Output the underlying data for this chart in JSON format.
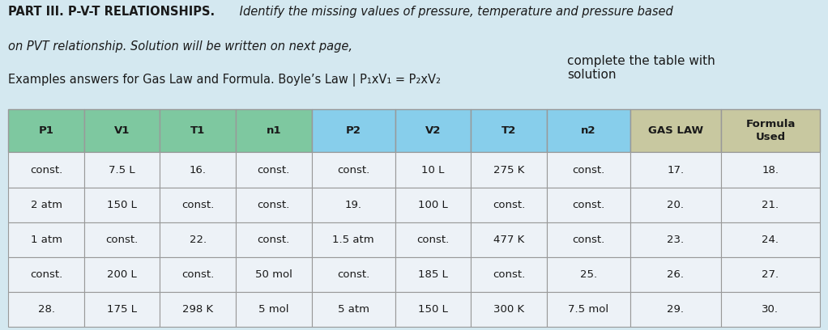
{
  "bg_color": "#D4E8F0",
  "title_bold": "PART III. P-V-T RELATIONSHIPS.",
  "title_italic_rest": " Identify the missing values of pressure, temperature and pressure based",
  "line2": "on PVT relationship. Solution will be written on next page,",
  "line3_left": "Examples answers for Gas Law and Formula. Boyle’s Law | P₁xV₁ = P₂xV₂",
  "line3_right": "complete the table with\nsolution",
  "header_row": [
    "P1",
    "V1",
    "T1",
    "n1",
    "P2",
    "V2",
    "T2",
    "n2",
    "GAS LAW",
    "Formula\nUsed"
  ],
  "header_colors": [
    "#7EC8A0",
    "#7EC8A0",
    "#7EC8A0",
    "#7EC8A0",
    "#87CEEB",
    "#87CEEB",
    "#87CEEB",
    "#87CEEB",
    "#C8C8A0",
    "#C8C8A0"
  ],
  "data_rows": [
    [
      "const.",
      "7.5 L",
      "16.",
      "const.",
      "const.",
      "10 L",
      "275 K",
      "const.",
      "17.",
      "18."
    ],
    [
      "2 atm",
      "150 L",
      "const.",
      "const.",
      "19.",
      "100 L",
      "const.",
      "const.",
      "20.",
      "21."
    ],
    [
      "1 atm",
      "const.",
      "22.",
      "const.",
      "1.5 atm",
      "const.",
      "477 K",
      "const.",
      "23.",
      "24."
    ],
    [
      "const.",
      "200 L",
      "const.",
      "50 mol",
      "const.",
      "185 L",
      "const.",
      "25.",
      "26.",
      "27."
    ],
    [
      "28.",
      "175 L",
      "298 K",
      "5 mol",
      "5 atm",
      "150 L",
      "300 K",
      "7.5 mol",
      "29.",
      "30."
    ]
  ],
  "row_bg": "#EDF2F7",
  "border_color": "#999999",
  "text_color": "#1a1a1a",
  "col_widths_rel": [
    1.0,
    1.0,
    1.0,
    1.0,
    1.1,
    1.0,
    1.0,
    1.1,
    1.2,
    1.3
  ],
  "font_size": 9.5,
  "header_font_size": 9.5,
  "title_font_size": 10.5
}
